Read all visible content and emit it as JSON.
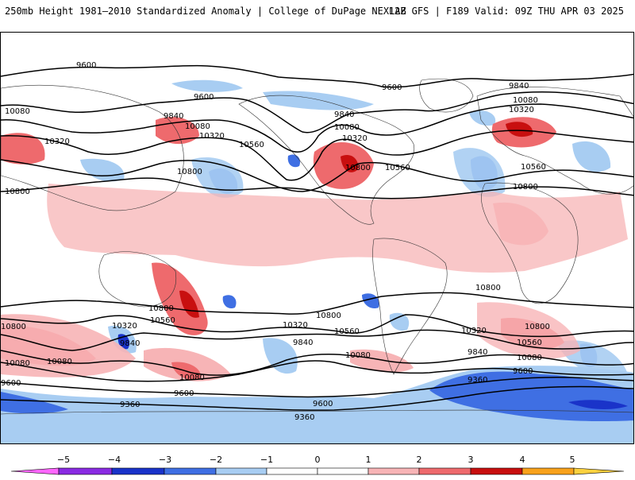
{
  "header": {
    "title": "250mb Height 1981–2010 Standardized Anomaly | College of DuPage NEXLAB",
    "run_info": "12Z GFS | F189 Valid: 09Z THU APR 03 2025"
  },
  "map": {
    "projection": "global equirectangular",
    "contour_interval_m": 240,
    "contour_labels": [
      "9600",
      "9600",
      "9600",
      "9840",
      "10080",
      "10320",
      "10800",
      "10080",
      "10320",
      "10560",
      "10800",
      "9840",
      "10080",
      "10320",
      "10560",
      "10800",
      "9840",
      "10080",
      "10320",
      "10560",
      "10800",
      "10800",
      "10080",
      "10320",
      "10560",
      "10800",
      "10080",
      "10320",
      "10560",
      "10800",
      "10320",
      "9840",
      "10080",
      "9840",
      "9600",
      "9360",
      "9600",
      "10080",
      "10320",
      "10560",
      "10800",
      "9840",
      "10080",
      "9600",
      "10320",
      "10560",
      "10800",
      "9360",
      "9600",
      "9360",
      "9360",
      "10080",
      "9600",
      "9600"
    ]
  },
  "colorbar": {
    "ticks": [
      "−5",
      "−4",
      "−3",
      "−2",
      "−1",
      "0",
      "1",
      "2",
      "3",
      "4",
      "5"
    ],
    "colors": {
      "below_-5": "#ff66ff",
      "-5_-4": "#8a2be2",
      "-4_-3": "#1a33c9",
      "-3_-2": "#3f6fe3",
      "-2_-1": "#a8cdf2",
      "-1_0": "#ffffff",
      "0_1": "#ffffff",
      "1_2": "#f7b4b6",
      "2_3": "#ee6a6d",
      "3_4": "#c80f0f",
      "4_5": "#f8a21c",
      "above_5": "#fbd13f"
    }
  }
}
